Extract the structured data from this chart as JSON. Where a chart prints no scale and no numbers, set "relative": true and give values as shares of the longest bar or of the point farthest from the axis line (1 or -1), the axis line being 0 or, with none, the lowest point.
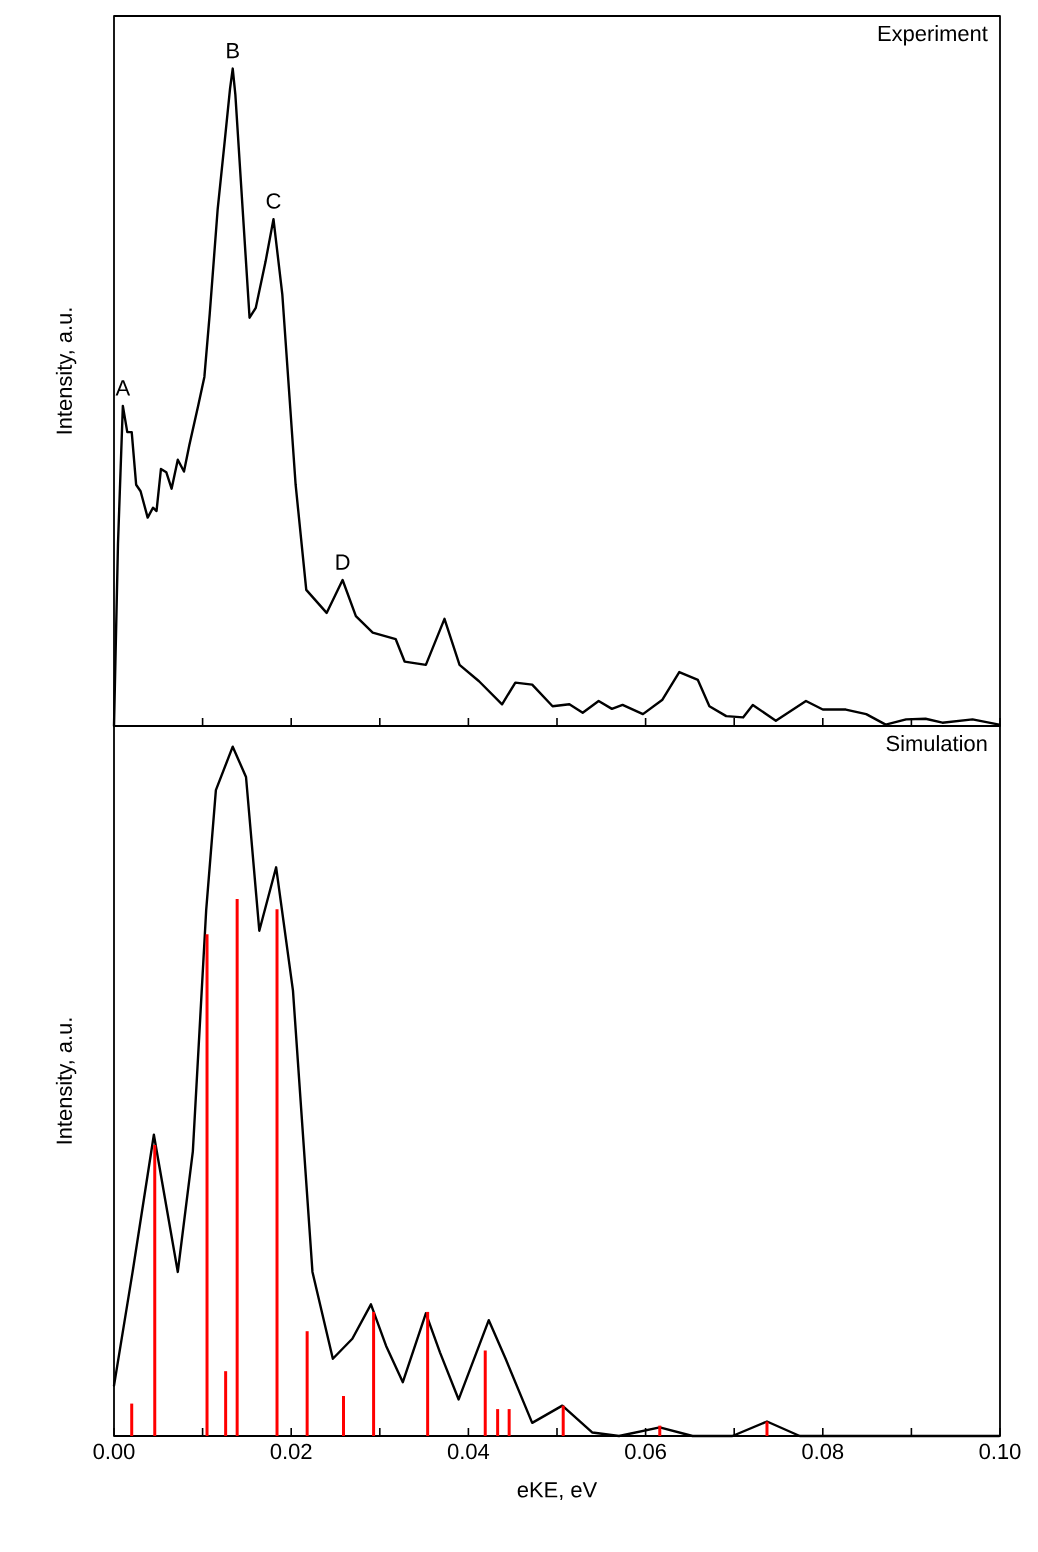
{
  "chart_data": [
    {
      "type": "line",
      "title": "Experiment",
      "ylabel": "Intensity, a.u.",
      "relative": true,
      "xlim": [
        0,
        0.1
      ],
      "xticks": [
        {
          "value": 0,
          "label": null
        },
        {
          "value": 0.01,
          "label": null
        },
        {
          "value": 0.02,
          "label": null
        },
        {
          "value": 0.03,
          "label": null
        },
        {
          "value": 0.04,
          "label": null
        },
        {
          "value": 0.05,
          "label": null
        },
        {
          "value": 0.06,
          "label": null
        },
        {
          "value": 0.07,
          "label": null
        },
        {
          "value": 0.08,
          "label": null
        },
        {
          "value": 0.09,
          "label": null
        },
        {
          "value": 0.1,
          "label": null
        }
      ],
      "tick_labels": false,
      "annotations": [
        {
          "text": "A",
          "x": 0.001,
          "y": 0.487
        },
        {
          "text": "B",
          "x": 0.0134,
          "y": 1.0
        },
        {
          "text": "C",
          "x": 0.018,
          "y": 0.771
        },
        {
          "text": "D",
          "x": 0.0258,
          "y": 0.222
        }
      ],
      "series": [
        {
          "color": "#000000",
          "x": [
            0,
            0.00045,
            0.001,
            0.0015,
            0.002,
            0.0025,
            0.003,
            0.0038,
            0.0044,
            0.0048,
            0.0053,
            0.0059,
            0.0065,
            0.0072,
            0.0079,
            0.0085,
            0.0095,
            0.0102,
            0.0108,
            0.0117,
            0.0125,
            0.0131,
            0.0134,
            0.0137,
            0.0141,
            0.0153,
            0.016,
            0.0171,
            0.018,
            0.019,
            0.0205,
            0.0217,
            0.024,
            0.0258,
            0.0273,
            0.0292,
            0.0318,
            0.0328,
            0.0352,
            0.0373,
            0.039,
            0.0412,
            0.0438,
            0.0453,
            0.0472,
            0.0495,
            0.0514,
            0.0529,
            0.0547,
            0.0562,
            0.0574,
            0.0597,
            0.0619,
            0.0638,
            0.0659,
            0.0672,
            0.0691,
            0.071,
            0.0721,
            0.0747,
            0.0781,
            0.08,
            0.0826,
            0.0849,
            0.0871,
            0.0894,
            0.0916,
            0.0935,
            0.0969,
            0.0999
          ],
          "values": [
            0,
            0.277,
            0.487,
            0.447,
            0.447,
            0.367,
            0.357,
            0.317,
            0.332,
            0.327,
            0.391,
            0.386,
            0.361,
            0.405,
            0.387,
            0.427,
            0.487,
            0.531,
            0.626,
            0.786,
            0.89,
            0.97,
            1.0,
            0.96,
            0.875,
            0.621,
            0.636,
            0.706,
            0.771,
            0.656,
            0.367,
            0.207,
            0.172,
            0.222,
            0.167,
            0.142,
            0.132,
            0.098,
            0.093,
            0.163,
            0.093,
            0.068,
            0.033,
            0.066,
            0.063,
            0.03,
            0.033,
            0.02,
            0.038,
            0.026,
            0.032,
            0.018,
            0.04,
            0.082,
            0.07,
            0.03,
            0.015,
            0.013,
            0.032,
            0.008,
            0.038,
            0.025,
            0.025,
            0.018,
            0.002,
            0.01,
            0.011,
            0.005,
            0.01,
            0.002
          ]
        }
      ]
    },
    {
      "type": "line",
      "title": "Simulation",
      "xlabel": "eKE, eV",
      "ylabel": "Intensity, a.u.",
      "relative": true,
      "xlim": [
        0,
        0.1
      ],
      "xticks": [
        {
          "value": 0,
          "label": "0.00"
        },
        {
          "value": 0.01,
          "label": null
        },
        {
          "value": 0.02,
          "label": "0.02"
        },
        {
          "value": 0.03,
          "label": null
        },
        {
          "value": 0.04,
          "label": "0.04"
        },
        {
          "value": 0.05,
          "label": null
        },
        {
          "value": 0.06,
          "label": "0.06"
        },
        {
          "value": 0.07,
          "label": null
        },
        {
          "value": 0.08,
          "label": "0.08"
        },
        {
          "value": 0.09,
          "label": null
        },
        {
          "value": 0.1,
          "label": "0.10"
        }
      ],
      "tick_labels": "x",
      "series": [
        {
          "type": "line",
          "color": "#000000",
          "x": [
            0,
            0.0021,
            0.0045,
            0.0072,
            0.0089,
            0.0104,
            0.0115,
            0.0134,
            0.0149,
            0.0164,
            0.0183,
            0.0202,
            0.0224,
            0.0247,
            0.0269,
            0.029,
            0.0307,
            0.0326,
            0.0352,
            0.0368,
            0.0389,
            0.0423,
            0.0442,
            0.0472,
            0.0506,
            0.054,
            0.057,
            0.0616,
            0.0653,
            0.0698,
            0.0737,
            0.0774,
            0.0999
          ],
          "values": [
            0.073,
            0.238,
            0.437,
            0.238,
            0.413,
            0.762,
            0.937,
            1.0,
            0.956,
            0.733,
            0.825,
            0.646,
            0.238,
            0.112,
            0.141,
            0.191,
            0.131,
            0.078,
            0.178,
            0.121,
            0.053,
            0.168,
            0.112,
            0.019,
            0.044,
            0.005,
            0,
            0.0125,
            0,
            0,
            0.021,
            0,
            0
          ]
        },
        {
          "type": "bar",
          "color": "#ff0000",
          "x": [
            0.002,
            0.0046,
            0.0105,
            0.0126,
            0.0139,
            0.0184,
            0.0218,
            0.0259,
            0.0293,
            0.0354,
            0.0419,
            0.0433,
            0.0446,
            0.0507,
            0.0616,
            0.0737
          ],
          "values": [
            0.047,
            0.422,
            0.728,
            0.094,
            0.779,
            0.764,
            0.152,
            0.058,
            0.18,
            0.18,
            0.124,
            0.039,
            0.039,
            0.044,
            0.015,
            0.021
          ]
        }
      ]
    }
  ]
}
